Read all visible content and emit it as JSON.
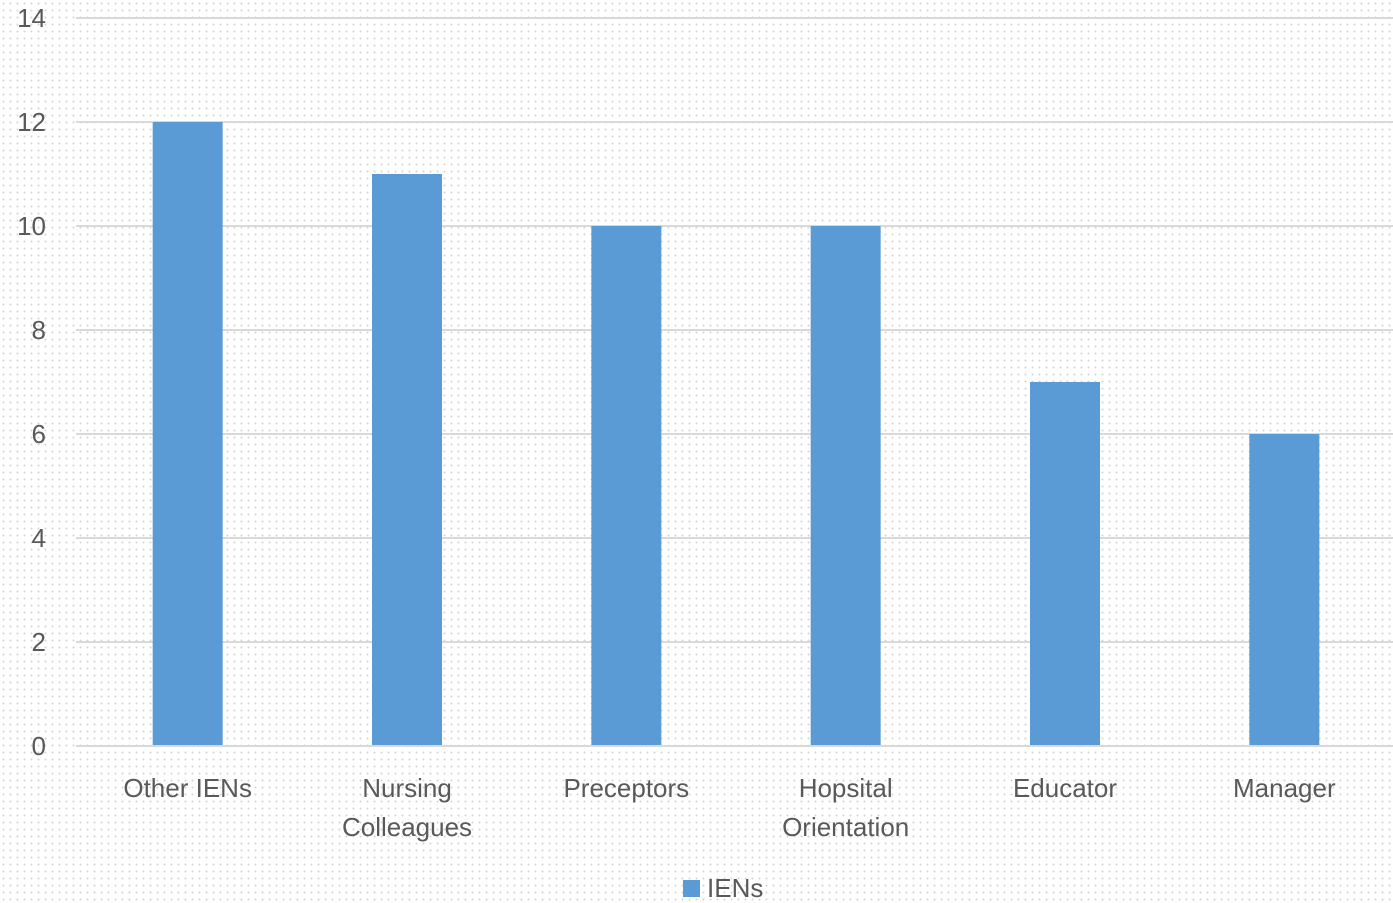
{
  "chart_data": {
    "type": "bar",
    "categories": [
      [
        "Other IENs"
      ],
      [
        "Nursing",
        "Colleagues"
      ],
      [
        "Preceptors"
      ],
      [
        "Hopsital",
        "Orientation"
      ],
      [
        "Educator"
      ],
      [
        "Manager"
      ]
    ],
    "series": [
      {
        "name": "IENs",
        "values": [
          12,
          11,
          10,
          10,
          7,
          6
        ],
        "color": "#5b9bd5"
      }
    ],
    "title": "",
    "xlabel": "",
    "ylabel": "",
    "ylim": [
      0,
      14
    ],
    "yticks": [
      "0",
      "2",
      "4",
      "6",
      "8",
      "10",
      "12",
      "14"
    ],
    "grid": true,
    "legend": "bottom-center"
  }
}
